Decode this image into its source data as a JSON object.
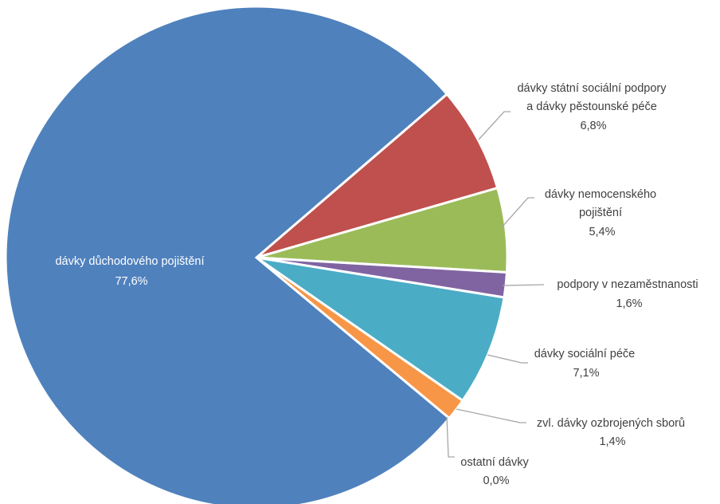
{
  "chart_data": {
    "type": "pie",
    "title": "",
    "slices": [
      {
        "label": "dávky důchodového pojištění",
        "value": 77.6,
        "value_label": "77,6%",
        "color": "#4f81bd"
      },
      {
        "label": "dávky státní sociální podpory a dávky pěstounské péče",
        "value": 6.8,
        "value_label": "6,8%",
        "color": "#c0504d"
      },
      {
        "label": "dávky nemocenského pojištění",
        "value": 5.4,
        "value_label": "5,4%",
        "color": "#9bbb59"
      },
      {
        "label": "podpory v nezaměstnanosti",
        "value": 1.6,
        "value_label": "1,6%",
        "color": "#8064a2"
      },
      {
        "label": "dávky sociální péče",
        "value": 7.1,
        "value_label": "7,1%",
        "color": "#4bacc6"
      },
      {
        "label": "zvl. dávky ozbrojených sborů",
        "value": 1.4,
        "value_label": "1,4%",
        "color": "#f79646"
      },
      {
        "label": "ostatní dávky",
        "value": 0.0,
        "value_label": "0,0%",
        "color": "#4f81bd"
      }
    ],
    "label_lines": [
      [
        "dávky důchodového pojištění",
        "77,6%"
      ],
      [
        "dávky státní sociální podpory",
        "a dávky pěstounské péče",
        "6,8%"
      ],
      [
        "dávky nemocenského",
        "pojištění",
        "5,4%"
      ],
      [
        "podpory v nezaměstnanosti",
        "1,6%"
      ],
      [
        "dávky sociální péče",
        "7,1%"
      ],
      [
        "zvl. dávky ozbrojených sborů",
        "1,4%"
      ],
      [
        "ostatní dávky",
        "0,0%"
      ]
    ]
  }
}
